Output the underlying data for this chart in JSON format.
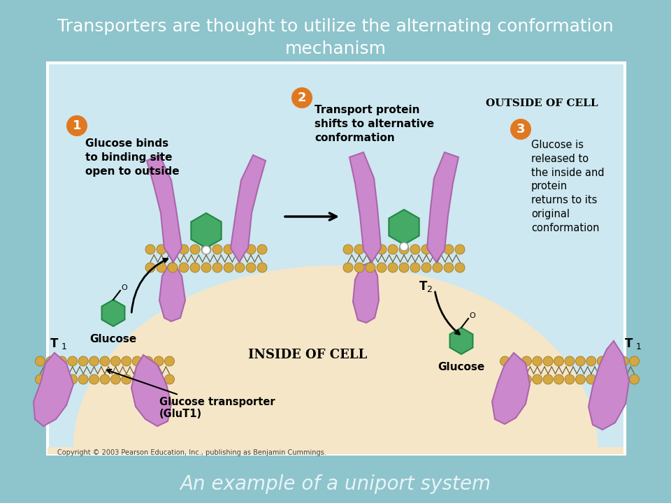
{
  "background_color": "#8ec4cc",
  "title_text1": "Transporters are thought to utilize the alternating conformation",
  "title_text2": "mechanism",
  "title_color": "#ffffff",
  "title_fontsize": 18,
  "caption_text": "An example of a uniport system",
  "caption_color": "#e8f4f8",
  "caption_fontsize": 20,
  "diagram_bg": "#cde8f0",
  "cell_interior_color": "#f5e6c8",
  "protein_color": "#cc88cc",
  "protein_edge": "#aa66aa",
  "glucose_color": "#44aa66",
  "glucose_edge": "#228844",
  "head_color": "#d4a840",
  "head_edge": "#a07828",
  "step_circle_color": "#e07820",
  "copyright_text": "Copyright © 2003 Pearson Education, Inc., publishing as Benjamin Cummings.",
  "outside_cell_text": "OUTSIDE OF CELL",
  "inside_cell_text": "INSIDE OF CELL",
  "step1_text": "Glucose binds\nto binding site\nopen to outside",
  "step2_text": "Transport protein\nshifts to alternative\nconformation",
  "step3_text": "Glucose is\nreleased to\nthe inside and\nprotein\nreturns to its\noriginal\nconformation",
  "t1_label": "T",
  "t2_label": "T",
  "glucose_label": "Glucose",
  "glut1_text": "Glucose transporter\n(GluT1)"
}
